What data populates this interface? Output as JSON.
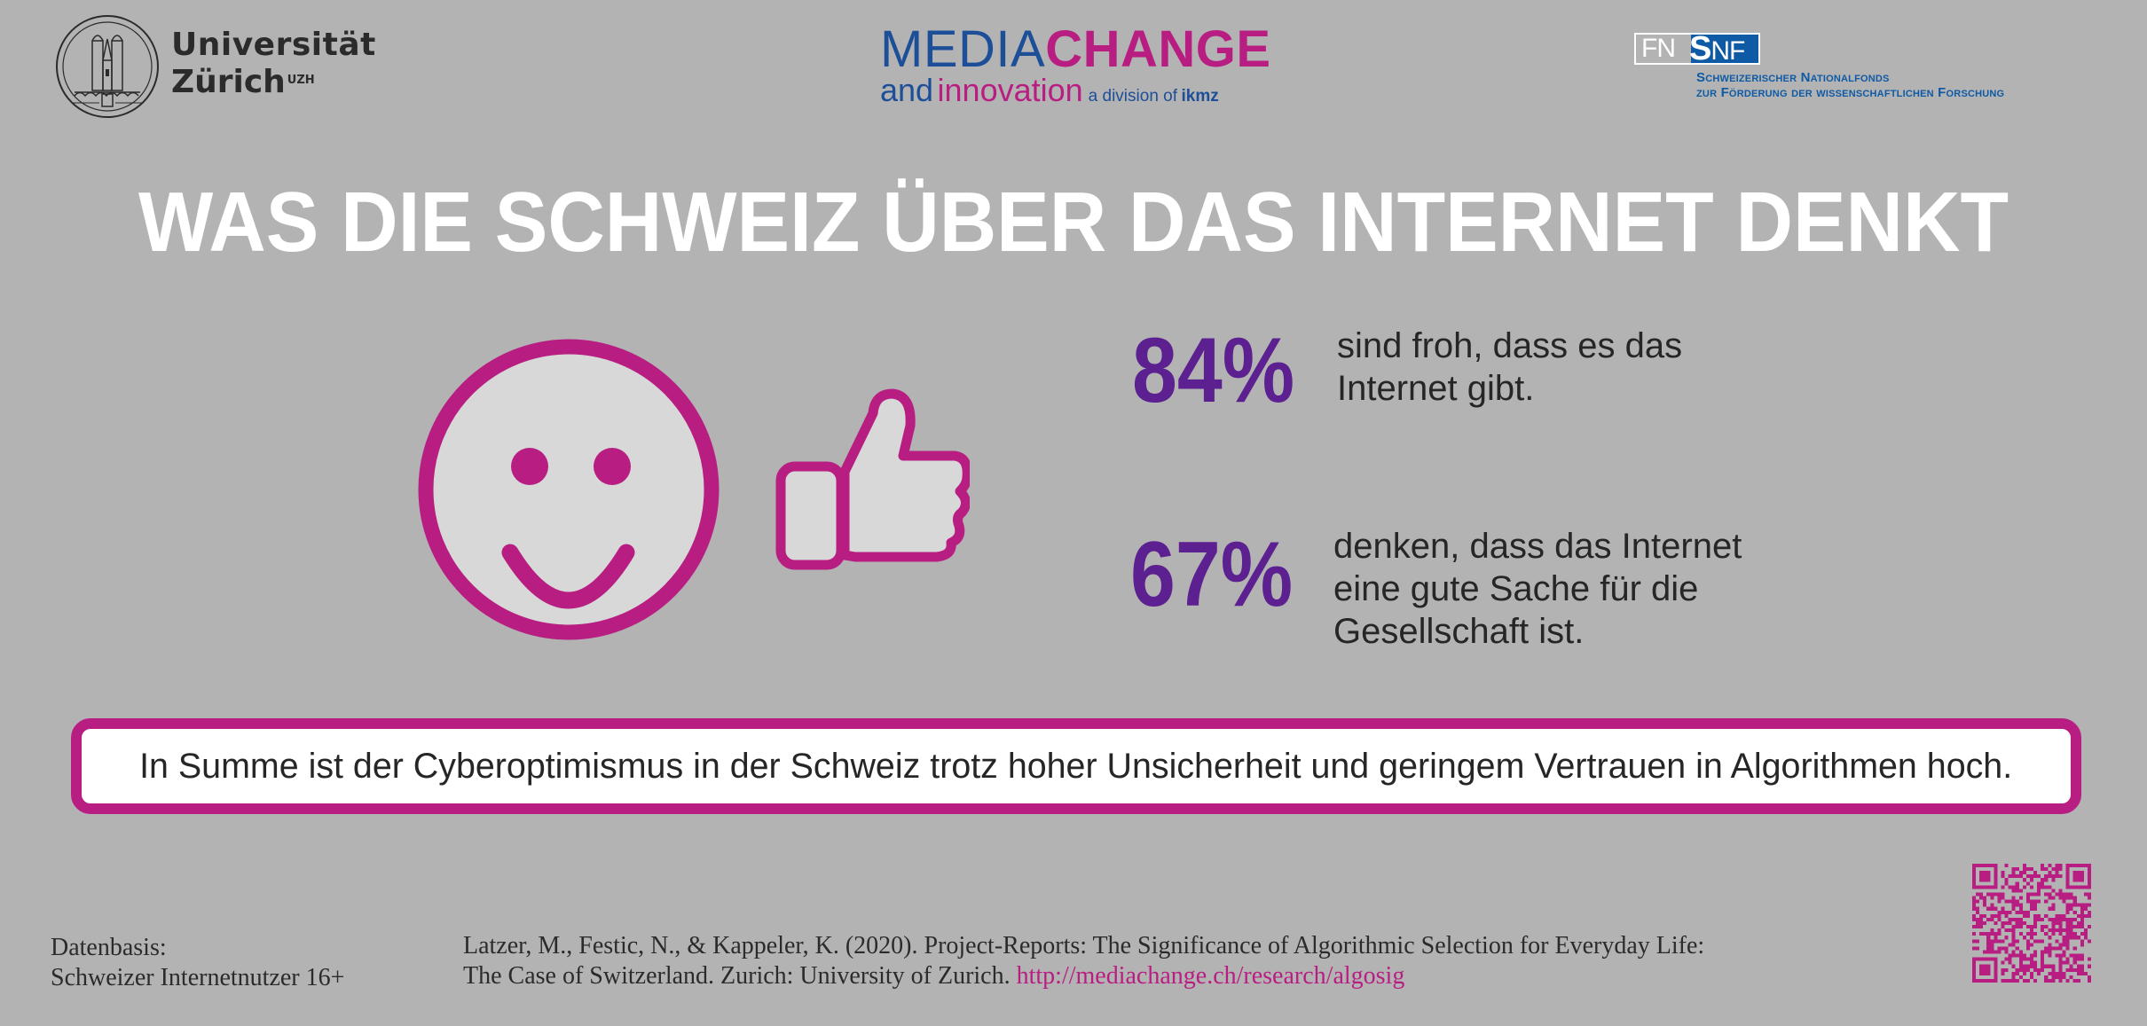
{
  "logos": {
    "uzh": {
      "line1": "Universität",
      "line2": "Zürich",
      "superscript": "UZH",
      "seal_text": "UNIVERSITAS TURICENSIS MDCCC XXXIII"
    },
    "mediachange": {
      "word1": "MEDIA",
      "word2": "CHANGE",
      "word3": "and",
      "word4": "innovation",
      "division": "a division of",
      "org": "ikmz"
    },
    "snf": {
      "fn": "FN",
      "s": "S",
      "nf": "NF",
      "line1": "Schweizerischer Nationalfonds",
      "line2": "zur Förderung der wissenschaftlichen Forschung"
    }
  },
  "title": "WAS DIE SCHWEIZ ÜBER DAS INTERNET DENKT",
  "icons": {
    "smiley": "smiley-face-icon",
    "thumb": "thumbs-up-icon"
  },
  "stats": [
    {
      "value": "84%",
      "percent": 84,
      "line1": "sind froh, dass es das",
      "line2": "Internet gibt."
    },
    {
      "value": "67%",
      "percent": 67,
      "line1": "denken, dass das Internet",
      "line2": "eine gute Sache für die",
      "line3": "Gesellschaft ist."
    }
  ],
  "summary": "In Summe ist der Cyberoptimismus in der Schweiz trotz hoher Unsicherheit und geringem Vertrauen in Algorithmen hoch.",
  "footer": {
    "datenbasis_label": "Datenbasis:",
    "datenbasis_value": "Schweizer Internetnutzer 16+",
    "citation_line1": "Latzer, M., Festic, N., & Kappeler, K. (2020). Project-Reports: The Significance of Algorithmic Selection for Everyday Life:",
    "citation_line2": "The Case of Switzerland. Zurich: University of Zurich.",
    "link": "http://mediachange.ch/research/algosig"
  },
  "colors": {
    "background": "#b3b3b3",
    "magenta": "#b81e82",
    "purple": "#5c2090",
    "blue": "#1d4f98",
    "snf_blue": "#0f5aa5",
    "icon_fill": "#d8d8d8"
  }
}
